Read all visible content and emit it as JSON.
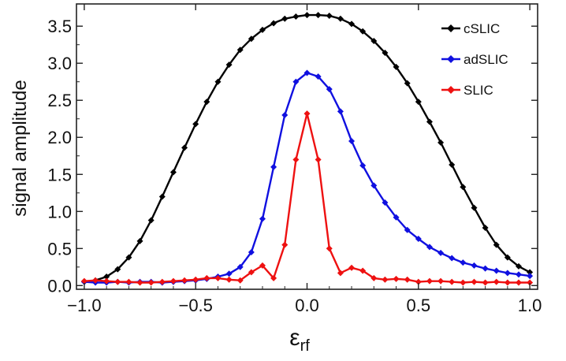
{
  "chart_data": {
    "type": "line",
    "title": "",
    "xlabel": "ε",
    "xlabel_sub": "rf",
    "ylabel": "signal amplitude",
    "xlim": [
      -1.0,
      1.0
    ],
    "ylim": [
      0.0,
      3.8
    ],
    "xticks": [
      -1.0,
      -0.5,
      0.0,
      0.5,
      1.0
    ],
    "xtick_labels": [
      "−1.0",
      "−0.5",
      "0.0",
      "0.5",
      "1.0"
    ],
    "yticks": [
      0.0,
      0.5,
      1.0,
      1.5,
      2.0,
      2.5,
      3.0,
      3.5
    ],
    "ytick_labels": [
      "0.0",
      "0.5",
      "1.0",
      "1.5",
      "2.0",
      "2.5",
      "3.0",
      "3.5"
    ],
    "grid": false,
    "legend_position": "top-right",
    "series": [
      {
        "name": "cSLIC",
        "color": "#000000",
        "x": [
          -1.0,
          -0.95,
          -0.9,
          -0.85,
          -0.8,
          -0.75,
          -0.7,
          -0.65,
          -0.6,
          -0.55,
          -0.5,
          -0.45,
          -0.4,
          -0.35,
          -0.3,
          -0.25,
          -0.2,
          -0.15,
          -0.1,
          -0.05,
          0.0,
          0.05,
          0.1,
          0.15,
          0.2,
          0.25,
          0.3,
          0.35,
          0.4,
          0.45,
          0.5,
          0.55,
          0.6,
          0.65,
          0.7,
          0.75,
          0.8,
          0.85,
          0.9,
          0.95,
          1.0
        ],
        "y": [
          0.05,
          0.07,
          0.12,
          0.22,
          0.38,
          0.6,
          0.88,
          1.2,
          1.53,
          1.86,
          2.18,
          2.48,
          2.75,
          2.98,
          3.18,
          3.33,
          3.45,
          3.54,
          3.6,
          3.63,
          3.65,
          3.65,
          3.64,
          3.6,
          3.53,
          3.43,
          3.3,
          3.14,
          2.95,
          2.73,
          2.48,
          2.21,
          1.93,
          1.63,
          1.33,
          1.05,
          0.78,
          0.55,
          0.38,
          0.26,
          0.18
        ]
      },
      {
        "name": "adSLIC",
        "color": "#1010e0",
        "x": [
          -1.0,
          -0.95,
          -0.9,
          -0.85,
          -0.8,
          -0.75,
          -0.7,
          -0.65,
          -0.6,
          -0.55,
          -0.5,
          -0.45,
          -0.4,
          -0.35,
          -0.3,
          -0.25,
          -0.2,
          -0.15,
          -0.1,
          -0.05,
          0.0,
          0.05,
          0.1,
          0.15,
          0.2,
          0.25,
          0.3,
          0.35,
          0.4,
          0.45,
          0.5,
          0.55,
          0.6,
          0.65,
          0.7,
          0.75,
          0.8,
          0.85,
          0.9,
          0.95,
          1.0
        ],
        "y": [
          0.05,
          0.04,
          0.04,
          0.05,
          0.04,
          0.05,
          0.05,
          0.04,
          0.05,
          0.06,
          0.07,
          0.09,
          0.12,
          0.16,
          0.25,
          0.45,
          0.9,
          1.6,
          2.3,
          2.75,
          2.87,
          2.82,
          2.65,
          2.35,
          1.95,
          1.62,
          1.35,
          1.12,
          0.92,
          0.75,
          0.63,
          0.52,
          0.44,
          0.37,
          0.31,
          0.27,
          0.23,
          0.2,
          0.17,
          0.15,
          0.13
        ]
      },
      {
        "name": "SLIC",
        "color": "#ee1111",
        "x": [
          -1.0,
          -0.95,
          -0.9,
          -0.85,
          -0.8,
          -0.75,
          -0.7,
          -0.65,
          -0.6,
          -0.55,
          -0.5,
          -0.45,
          -0.4,
          -0.35,
          -0.3,
          -0.25,
          -0.2,
          -0.15,
          -0.1,
          -0.05,
          0.0,
          0.05,
          0.1,
          0.15,
          0.2,
          0.25,
          0.3,
          0.35,
          0.4,
          0.45,
          0.5,
          0.55,
          0.6,
          0.65,
          0.7,
          0.75,
          0.8,
          0.85,
          0.9,
          0.95,
          1.0
        ],
        "y": [
          0.06,
          0.07,
          0.06,
          0.05,
          0.05,
          0.04,
          0.04,
          0.05,
          0.06,
          0.07,
          0.08,
          0.1,
          0.1,
          0.08,
          0.07,
          0.18,
          0.27,
          0.1,
          0.55,
          1.7,
          2.32,
          1.7,
          0.5,
          0.17,
          0.24,
          0.2,
          0.1,
          0.08,
          0.09,
          0.08,
          0.05,
          0.06,
          0.06,
          0.05,
          0.04,
          0.05,
          0.04,
          0.05,
          0.04,
          0.04,
          0.04
        ]
      }
    ]
  }
}
